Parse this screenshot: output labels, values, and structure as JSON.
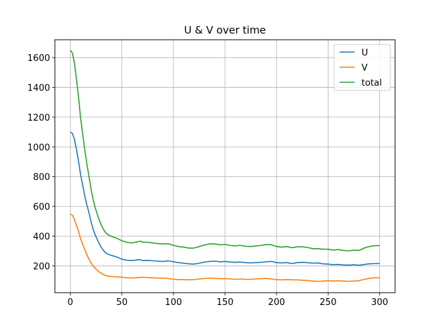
{
  "chart_data": {
    "type": "line",
    "title": "U & V over time",
    "xlabel": "",
    "ylabel": "",
    "xlim": [
      -15,
      315
    ],
    "ylim": [
      20,
      1720
    ],
    "xticks": [
      0,
      50,
      100,
      150,
      200,
      250,
      300
    ],
    "yticks": [
      200,
      400,
      600,
      800,
      1000,
      1200,
      1400,
      1600
    ],
    "grid": true,
    "legend_position": "top-right",
    "series": [
      {
        "name": "U",
        "color": "#1f77b4",
        "points": [
          [
            0,
            1100
          ],
          [
            2,
            1090
          ],
          [
            4,
            1050
          ],
          [
            6,
            980
          ],
          [
            8,
            900
          ],
          [
            10,
            810
          ],
          [
            12,
            740
          ],
          [
            14,
            670
          ],
          [
            16,
            610
          ],
          [
            18,
            560
          ],
          [
            20,
            500
          ],
          [
            22,
            450
          ],
          [
            24,
            410
          ],
          [
            26,
            380
          ],
          [
            28,
            350
          ],
          [
            30,
            325
          ],
          [
            32,
            305
          ],
          [
            34,
            290
          ],
          [
            36,
            280
          ],
          [
            38,
            275
          ],
          [
            40,
            270
          ],
          [
            45,
            260
          ],
          [
            50,
            245
          ],
          [
            55,
            238
          ],
          [
            60,
            236
          ],
          [
            65,
            240
          ],
          [
            68,
            242
          ],
          [
            70,
            235
          ],
          [
            75,
            237
          ],
          [
            80,
            234
          ],
          [
            85,
            232
          ],
          [
            90,
            230
          ],
          [
            95,
            234
          ],
          [
            100,
            228
          ],
          [
            105,
            222
          ],
          [
            110,
            218
          ],
          [
            115,
            214
          ],
          [
            120,
            212
          ],
          [
            125,
            218
          ],
          [
            130,
            225
          ],
          [
            135,
            230
          ],
          [
            140,
            232
          ],
          [
            145,
            228
          ],
          [
            150,
            230
          ],
          [
            155,
            226
          ],
          [
            160,
            224
          ],
          [
            165,
            226
          ],
          [
            170,
            222
          ],
          [
            175,
            220
          ],
          [
            180,
            222
          ],
          [
            185,
            224
          ],
          [
            190,
            228
          ],
          [
            195,
            230
          ],
          [
            200,
            222
          ],
          [
            205,
            220
          ],
          [
            210,
            222
          ],
          [
            215,
            216
          ],
          [
            220,
            222
          ],
          [
            225,
            224
          ],
          [
            230,
            222
          ],
          [
            235,
            218
          ],
          [
            240,
            220
          ],
          [
            245,
            214
          ],
          [
            250,
            212
          ],
          [
            255,
            208
          ],
          [
            260,
            210
          ],
          [
            265,
            206
          ],
          [
            270,
            205
          ],
          [
            275,
            208
          ],
          [
            280,
            204
          ],
          [
            285,
            210
          ],
          [
            290,
            214
          ],
          [
            295,
            216
          ],
          [
            300,
            216
          ]
        ]
      },
      {
        "name": "V",
        "color": "#ff7f0e",
        "points": [
          [
            0,
            550
          ],
          [
            2,
            540
          ],
          [
            4,
            510
          ],
          [
            6,
            470
          ],
          [
            8,
            430
          ],
          [
            10,
            380
          ],
          [
            12,
            345
          ],
          [
            14,
            310
          ],
          [
            16,
            275
          ],
          [
            18,
            245
          ],
          [
            20,
            220
          ],
          [
            22,
            200
          ],
          [
            24,
            185
          ],
          [
            26,
            170
          ],
          [
            28,
            160
          ],
          [
            30,
            150
          ],
          [
            32,
            142
          ],
          [
            34,
            136
          ],
          [
            36,
            132
          ],
          [
            38,
            130
          ],
          [
            40,
            128
          ],
          [
            45,
            126
          ],
          [
            50,
            124
          ],
          [
            55,
            120
          ],
          [
            60,
            118
          ],
          [
            65,
            122
          ],
          [
            70,
            124
          ],
          [
            75,
            122
          ],
          [
            80,
            120
          ],
          [
            85,
            118
          ],
          [
            90,
            118
          ],
          [
            95,
            115
          ],
          [
            100,
            110
          ],
          [
            105,
            108
          ],
          [
            110,
            108
          ],
          [
            115,
            106
          ],
          [
            120,
            108
          ],
          [
            125,
            112
          ],
          [
            130,
            115
          ],
          [
            135,
            118
          ],
          [
            140,
            116
          ],
          [
            145,
            114
          ],
          [
            150,
            115
          ],
          [
            155,
            112
          ],
          [
            160,
            110
          ],
          [
            165,
            112
          ],
          [
            170,
            110
          ],
          [
            175,
            110
          ],
          [
            180,
            112
          ],
          [
            185,
            114
          ],
          [
            190,
            116
          ],
          [
            195,
            112
          ],
          [
            200,
            108
          ],
          [
            205,
            106
          ],
          [
            210,
            108
          ],
          [
            215,
            106
          ],
          [
            220,
            106
          ],
          [
            225,
            104
          ],
          [
            230,
            102
          ],
          [
            235,
            98
          ],
          [
            240,
            96
          ],
          [
            245,
            98
          ],
          [
            250,
            100
          ],
          [
            255,
            98
          ],
          [
            260,
            100
          ],
          [
            265,
            98
          ],
          [
            270,
            96
          ],
          [
            275,
            98
          ],
          [
            280,
            100
          ],
          [
            285,
            110
          ],
          [
            290,
            116
          ],
          [
            295,
            120
          ],
          [
            300,
            120
          ]
        ]
      },
      {
        "name": "total",
        "color": "#2ca02c",
        "points": [
          [
            0,
            1650
          ],
          [
            2,
            1630
          ],
          [
            4,
            1560
          ],
          [
            6,
            1450
          ],
          [
            8,
            1330
          ],
          [
            10,
            1190
          ],
          [
            12,
            1085
          ],
          [
            14,
            980
          ],
          [
            16,
            885
          ],
          [
            18,
            805
          ],
          [
            20,
            720
          ],
          [
            22,
            650
          ],
          [
            24,
            595
          ],
          [
            26,
            550
          ],
          [
            28,
            510
          ],
          [
            30,
            475
          ],
          [
            32,
            447
          ],
          [
            34,
            426
          ],
          [
            36,
            412
          ],
          [
            38,
            405
          ],
          [
            40,
            398
          ],
          [
            45,
            386
          ],
          [
            50,
            369
          ],
          [
            55,
            358
          ],
          [
            60,
            354
          ],
          [
            65,
            362
          ],
          [
            68,
            366
          ],
          [
            70,
            359
          ],
          [
            75,
            359
          ],
          [
            80,
            354
          ],
          [
            85,
            350
          ],
          [
            90,
            348
          ],
          [
            95,
            349
          ],
          [
            100,
            338
          ],
          [
            105,
            330
          ],
          [
            110,
            326
          ],
          [
            115,
            320
          ],
          [
            120,
            320
          ],
          [
            125,
            330
          ],
          [
            130,
            340
          ],
          [
            135,
            348
          ],
          [
            140,
            348
          ],
          [
            145,
            342
          ],
          [
            150,
            345
          ],
          [
            155,
            338
          ],
          [
            160,
            334
          ],
          [
            165,
            338
          ],
          [
            170,
            332
          ],
          [
            175,
            330
          ],
          [
            180,
            334
          ],
          [
            185,
            338
          ],
          [
            190,
            344
          ],
          [
            195,
            342
          ],
          [
            200,
            330
          ],
          [
            205,
            326
          ],
          [
            210,
            330
          ],
          [
            215,
            322
          ],
          [
            220,
            328
          ],
          [
            225,
            328
          ],
          [
            230,
            324
          ],
          [
            235,
            316
          ],
          [
            240,
            316
          ],
          [
            245,
            312
          ],
          [
            250,
            312
          ],
          [
            255,
            306
          ],
          [
            260,
            310
          ],
          [
            265,
            304
          ],
          [
            270,
            301
          ],
          [
            275,
            306
          ],
          [
            280,
            304
          ],
          [
            285,
            320
          ],
          [
            290,
            330
          ],
          [
            295,
            336
          ],
          [
            300,
            336
          ]
        ]
      }
    ]
  }
}
